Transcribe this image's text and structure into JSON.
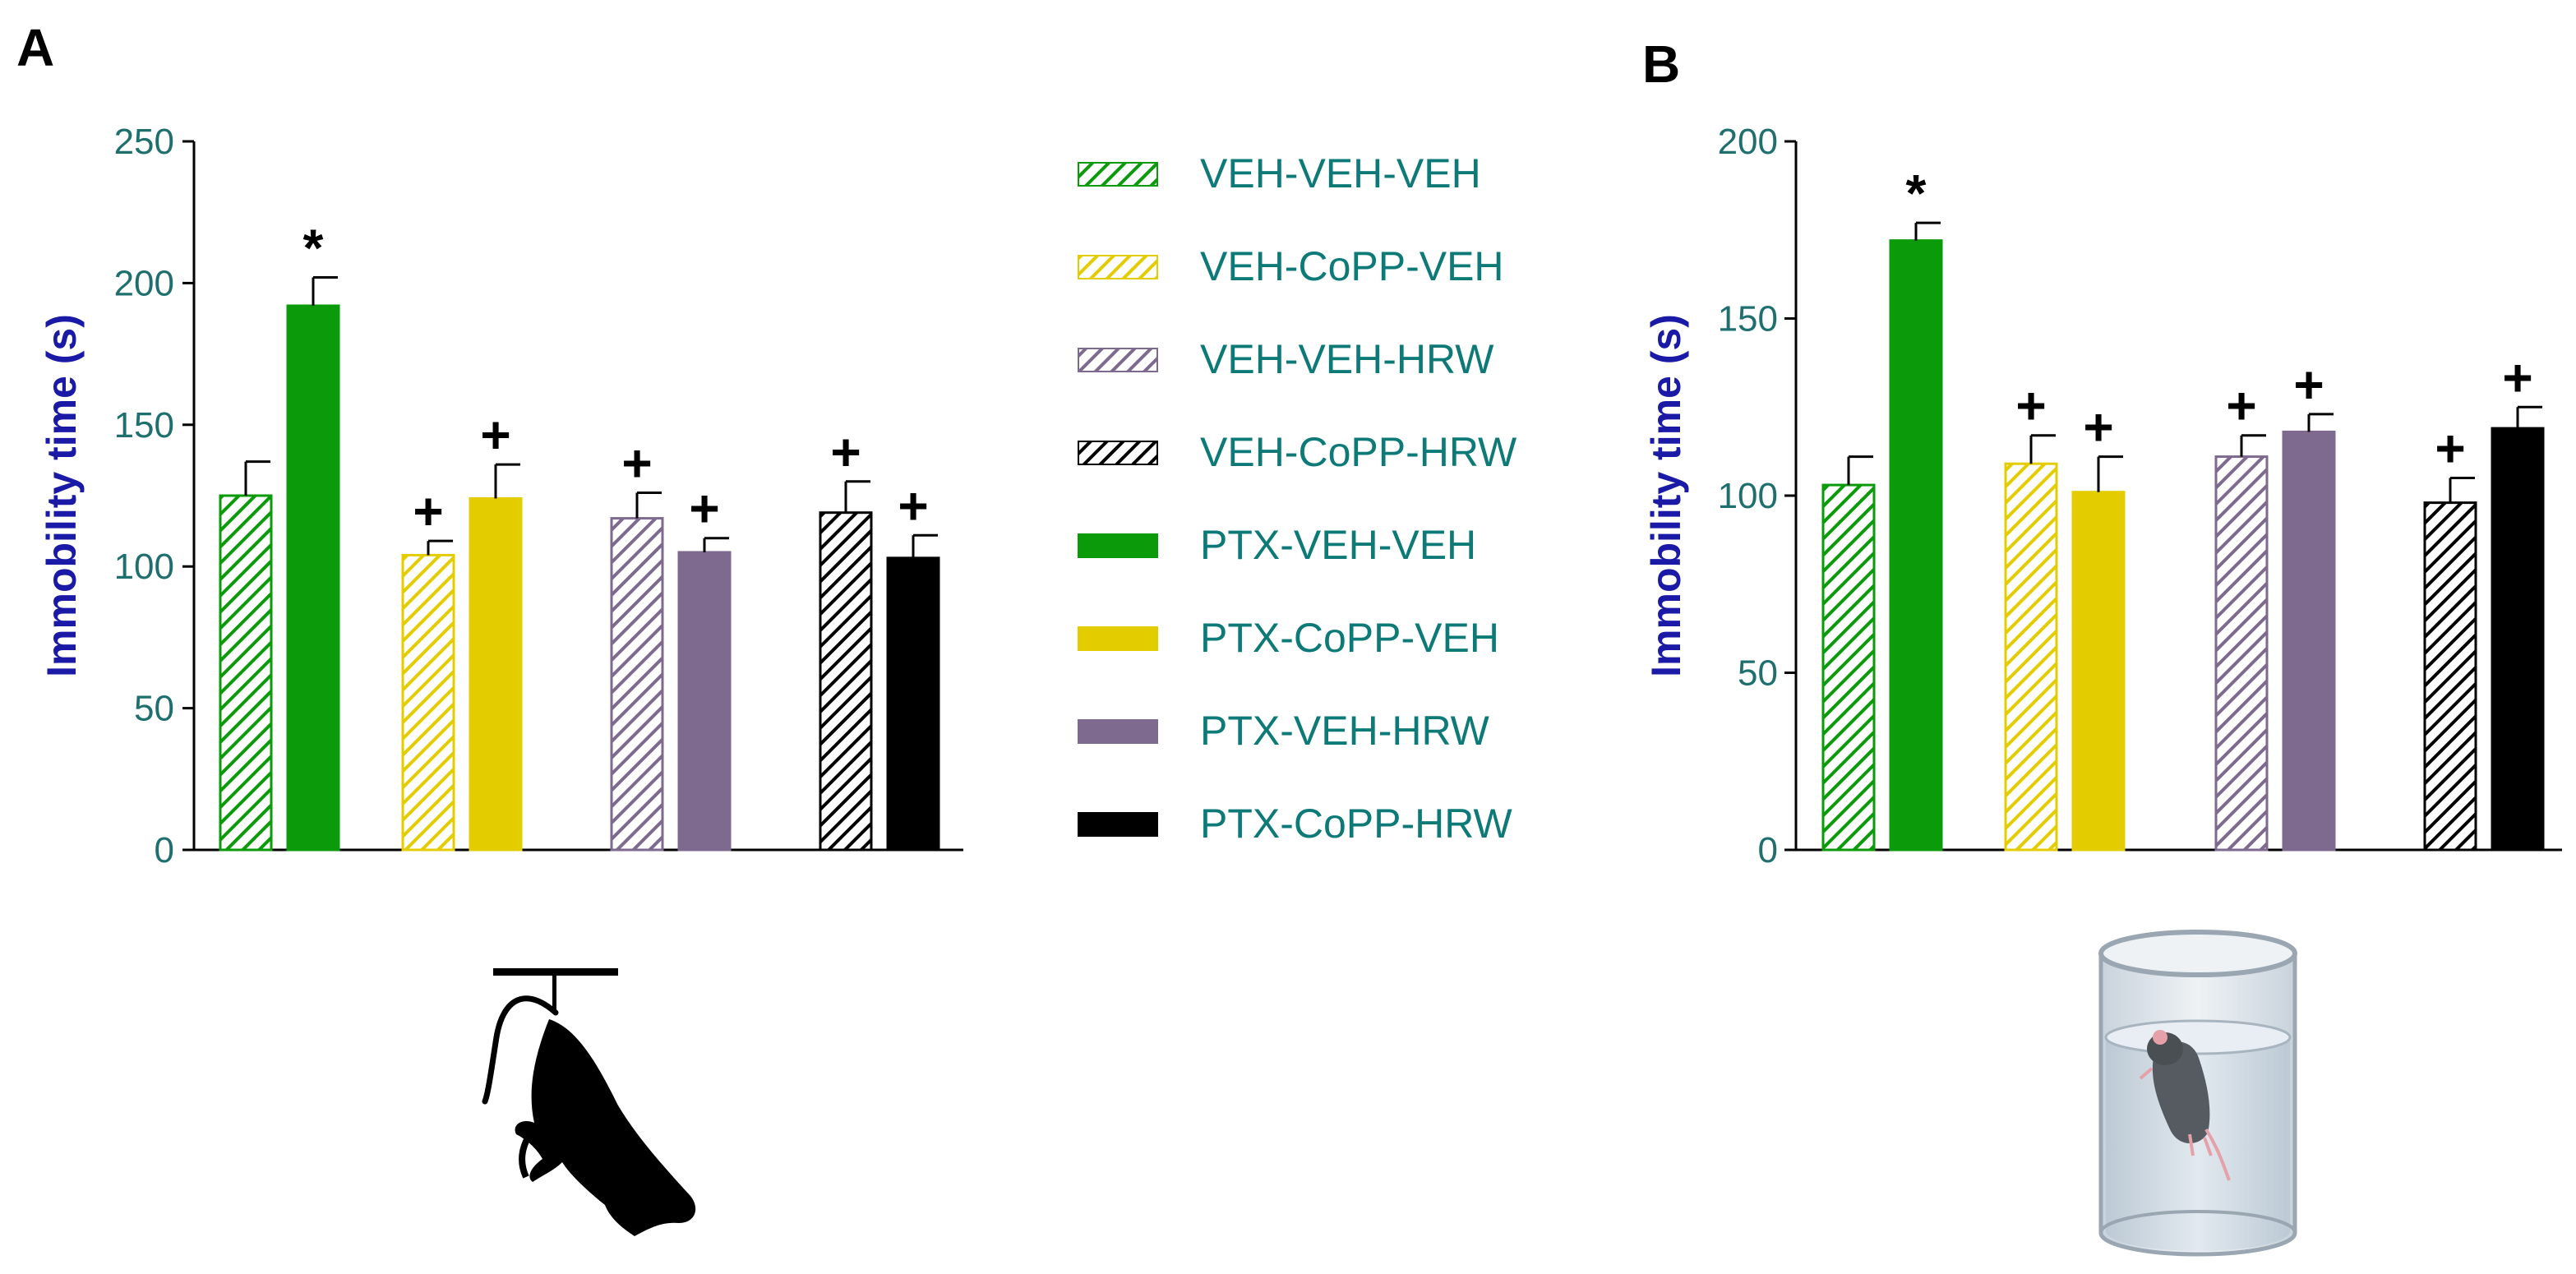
{
  "panels": [
    {
      "id": "A",
      "label": "A"
    },
    {
      "id": "B",
      "label": "B"
    }
  ],
  "colors": {
    "green": "#0a9a0a",
    "yellow": "#e3cc00",
    "purple": "#7f6a8f",
    "black": "#000000",
    "tick_text": "#1f6f6f",
    "axis_title": "#1a1aa6",
    "legend_text": "#0e7a78"
  },
  "legend": [
    {
      "label": "VEH-VEH-VEH",
      "color": "green",
      "pattern": "hatched"
    },
    {
      "label": "VEH-CoPP-VEH",
      "color": "yellow",
      "pattern": "hatched"
    },
    {
      "label": "VEH-VEH-HRW",
      "color": "purple",
      "pattern": "hatched"
    },
    {
      "label": "VEH-CoPP-HRW",
      "color": "black",
      "pattern": "hatched"
    },
    {
      "label": "PTX-VEH-VEH",
      "color": "green",
      "pattern": "solid"
    },
    {
      "label": "PTX-CoPP-VEH",
      "color": "yellow",
      "pattern": "solid"
    },
    {
      "label": "PTX-VEH-HRW",
      "color": "purple",
      "pattern": "solid"
    },
    {
      "label": "PTX-CoPP-HRW",
      "color": "black",
      "pattern": "solid"
    }
  ],
  "chart_data": [
    {
      "panel": "A",
      "type": "bar",
      "ylabel": "Immobility time (s)",
      "ylim": [
        0,
        250
      ],
      "yticks": [
        0,
        50,
        100,
        150,
        200,
        250
      ],
      "series_order": [
        "VEH-VEH-VEH",
        "PTX-VEH-VEH",
        "VEH-CoPP-VEH",
        "PTX-CoPP-VEH",
        "VEH-VEH-HRW",
        "PTX-VEH-HRW",
        "VEH-CoPP-HRW",
        "PTX-CoPP-HRW"
      ],
      "bars": [
        {
          "group": "VEH-VEH-VEH",
          "value": 125,
          "error": 12,
          "mark": ""
        },
        {
          "group": "PTX-VEH-VEH",
          "value": 192,
          "error": 10,
          "mark": "*"
        },
        {
          "group": "VEH-CoPP-VEH",
          "value": 104,
          "error": 5,
          "mark": "+"
        },
        {
          "group": "PTX-CoPP-VEH",
          "value": 124,
          "error": 12,
          "mark": "+"
        },
        {
          "group": "VEH-VEH-HRW",
          "value": 117,
          "error": 9,
          "mark": "+"
        },
        {
          "group": "PTX-VEH-HRW",
          "value": 105,
          "error": 5,
          "mark": "+"
        },
        {
          "group": "VEH-CoPP-HRW",
          "value": 119,
          "error": 11,
          "mark": "+"
        },
        {
          "group": "PTX-CoPP-HRW",
          "value": 103,
          "error": 8,
          "mark": "+"
        }
      ]
    },
    {
      "panel": "B",
      "type": "bar",
      "ylabel": "Immobility time (s)",
      "ylim": [
        0,
        200
      ],
      "yticks": [
        0,
        50,
        100,
        150,
        200
      ],
      "series_order": [
        "VEH-VEH-VEH",
        "PTX-VEH-VEH",
        "VEH-CoPP-VEH",
        "PTX-CoPP-VEH",
        "VEH-VEH-HRW",
        "PTX-VEH-HRW",
        "VEH-CoPP-HRW",
        "PTX-CoPP-HRW"
      ],
      "bars": [
        {
          "group": "VEH-VEH-VEH",
          "value": 103,
          "error": 8,
          "mark": ""
        },
        {
          "group": "PTX-VEH-VEH",
          "value": 172,
          "error": 5,
          "mark": "*"
        },
        {
          "group": "VEH-CoPP-VEH",
          "value": 109,
          "error": 8,
          "mark": "+"
        },
        {
          "group": "PTX-CoPP-VEH",
          "value": 101,
          "error": 10,
          "mark": "+"
        },
        {
          "group": "VEH-VEH-HRW",
          "value": 111,
          "error": 6,
          "mark": "+"
        },
        {
          "group": "PTX-VEH-HRW",
          "value": 118,
          "error": 5,
          "mark": "+"
        },
        {
          "group": "VEH-CoPP-HRW",
          "value": 98,
          "error": 7,
          "mark": "+"
        },
        {
          "group": "PTX-CoPP-HRW",
          "value": 119,
          "error": 6,
          "mark": "+"
        }
      ]
    }
  ],
  "illustrations": [
    {
      "name": "tail-suspension-mouse"
    },
    {
      "name": "forced-swim-mouse-cylinder"
    }
  ]
}
